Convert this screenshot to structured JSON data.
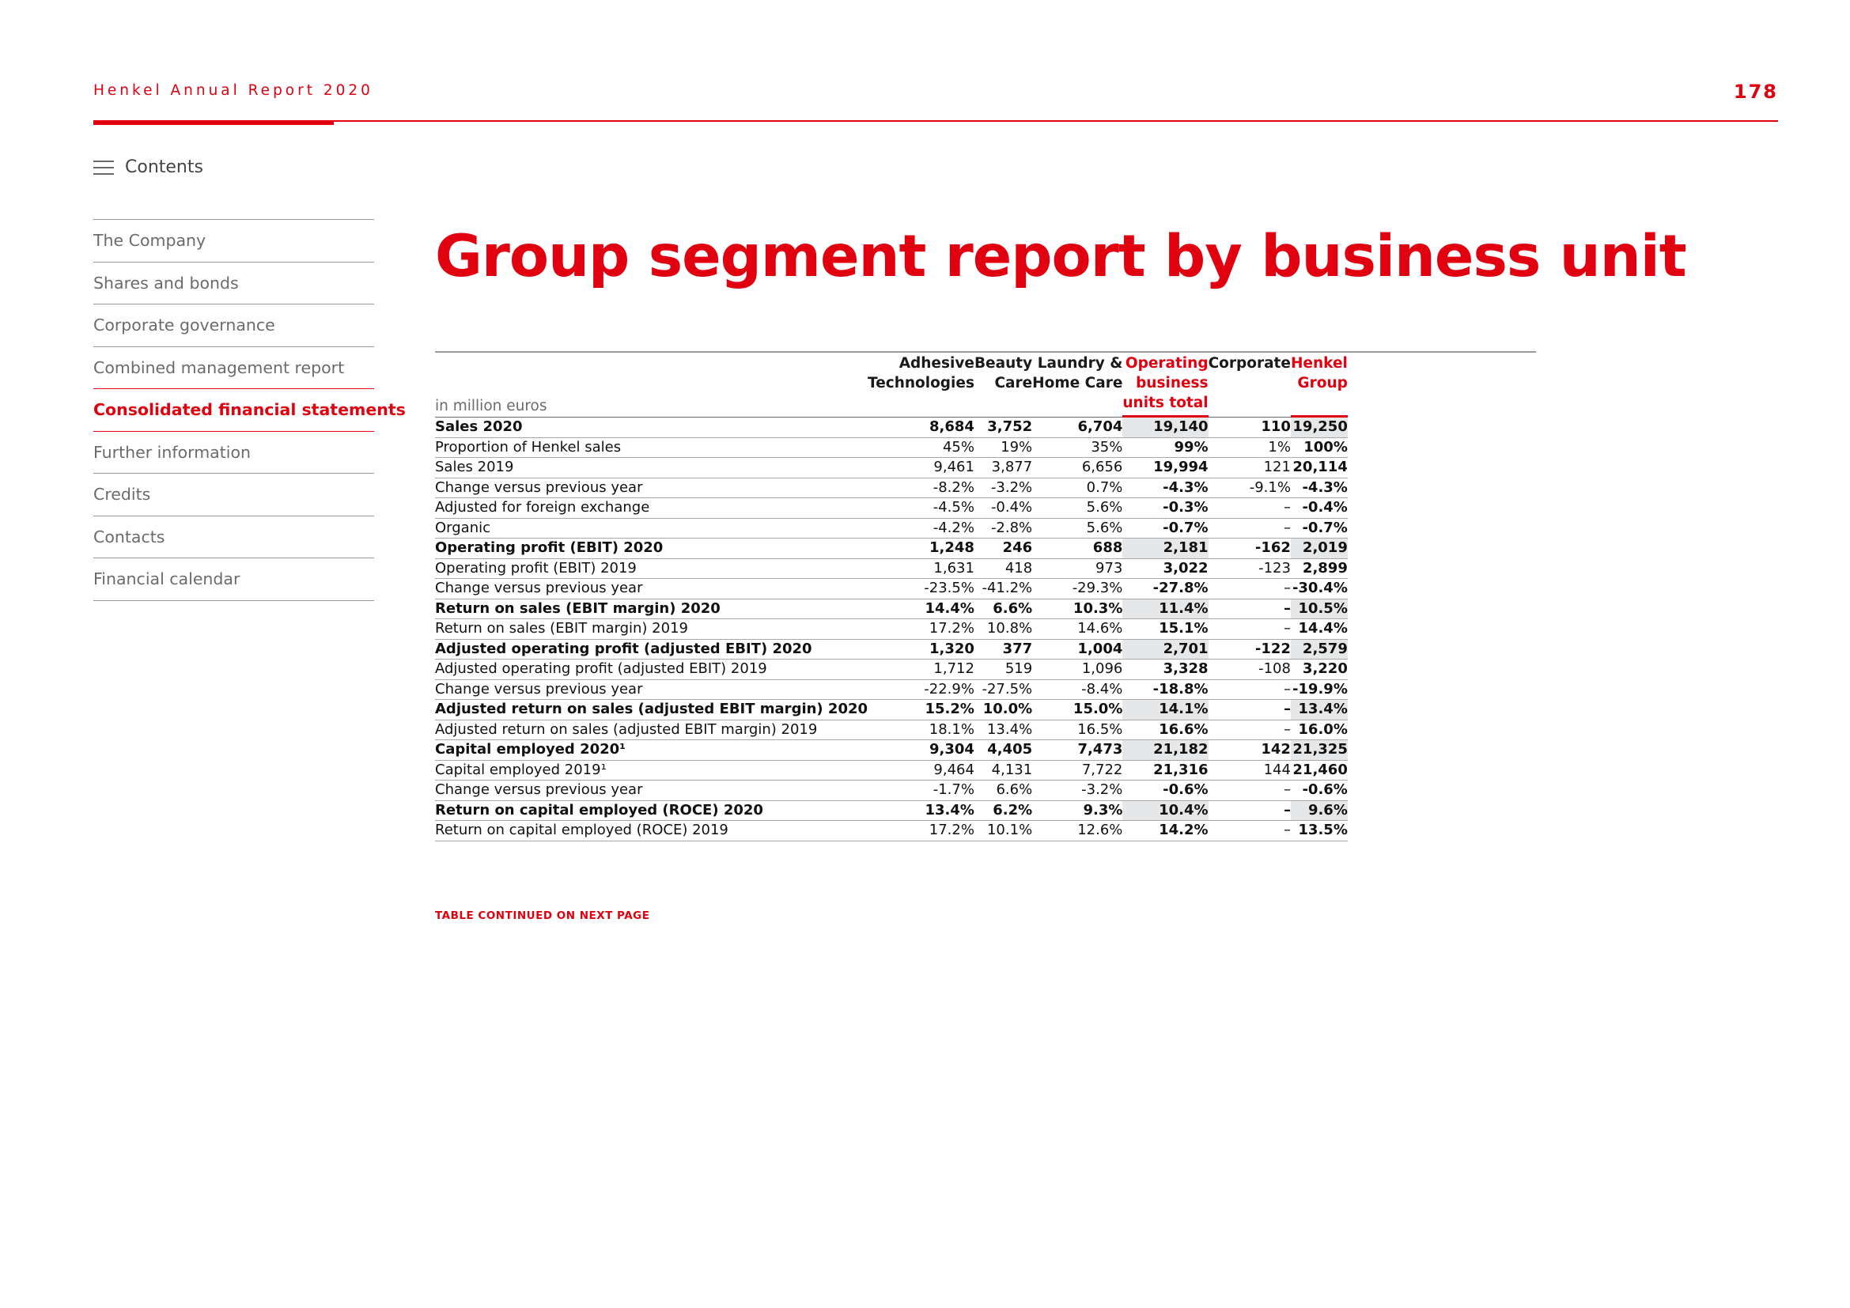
{
  "header": {
    "title": "Henkel Annual Report 2020",
    "page_number": "178"
  },
  "contents": {
    "label": "Contents",
    "icon": "menu-icon"
  },
  "nav": {
    "items": [
      {
        "label": "The Company",
        "active": false
      },
      {
        "label": "Shares and bonds",
        "active": false
      },
      {
        "label": "Corporate governance",
        "active": false
      },
      {
        "label": "Combined management report",
        "active": false
      },
      {
        "label": "Consolidated financial statements",
        "active": true
      },
      {
        "label": "Further information",
        "active": false
      },
      {
        "label": "Credits",
        "active": false
      },
      {
        "label": "Contacts",
        "active": false
      },
      {
        "label": "Financial calendar",
        "active": false
      }
    ]
  },
  "page_title": "Group segment report by business unit",
  "table": {
    "unit_label": "in million euros",
    "columns": [
      {
        "line1": "Adhesive",
        "line2": "Technologies",
        "line3": ""
      },
      {
        "line1": "Beauty",
        "line2": "Care",
        "line3": ""
      },
      {
        "line1": "Laundry &",
        "line2": "Home Care",
        "line3": ""
      },
      {
        "line1": "Operating",
        "line2": "business",
        "line3": "units total"
      },
      {
        "line1": "Corporate",
        "line2": "",
        "line3": ""
      },
      {
        "line1": "Henkel",
        "line2": "Group",
        "line3": ""
      }
    ],
    "rows": [
      {
        "label": "Sales 2020",
        "bold": true,
        "values": [
          "8,684",
          "3,752",
          "6,704",
          "19,140",
          "110",
          "19,250"
        ]
      },
      {
        "label": "Proportion of Henkel sales",
        "bold": false,
        "values": [
          "45%",
          "19%",
          "35%",
          "99%",
          "1%",
          "100%"
        ]
      },
      {
        "label": "Sales 2019",
        "bold": false,
        "values": [
          "9,461",
          "3,877",
          "6,656",
          "19,994",
          "121",
          "20,114"
        ]
      },
      {
        "label": "Change versus previous year",
        "bold": false,
        "values": [
          "-8.2%",
          "-3.2%",
          "0.7%",
          "-4.3%",
          "-9.1%",
          "-4.3%"
        ]
      },
      {
        "label": "Adjusted for foreign exchange",
        "bold": false,
        "values": [
          "-4.5%",
          "-0.4%",
          "5.6%",
          "-0.3%",
          "–",
          "-0.4%"
        ]
      },
      {
        "label": "Organic",
        "bold": false,
        "values": [
          "-4.2%",
          "-2.8%",
          "5.6%",
          "-0.7%",
          "–",
          "-0.7%"
        ]
      },
      {
        "label": "Operating profit (EBIT) 2020",
        "bold": true,
        "values": [
          "1,248",
          "246",
          "688",
          "2,181",
          "-162",
          "2,019"
        ]
      },
      {
        "label": "Operating profit (EBIT) 2019",
        "bold": false,
        "values": [
          "1,631",
          "418",
          "973",
          "3,022",
          "-123",
          "2,899"
        ]
      },
      {
        "label": "Change versus previous year",
        "bold": false,
        "values": [
          "-23.5%",
          "-41.2%",
          "-29.3%",
          "-27.8%",
          "–",
          "-30.4%"
        ]
      },
      {
        "label": "Return on sales (EBIT margin) 2020",
        "bold": true,
        "values": [
          "14.4%",
          "6.6%",
          "10.3%",
          "11.4%",
          "–",
          "10.5%"
        ]
      },
      {
        "label": "Return on sales (EBIT margin) 2019",
        "bold": false,
        "values": [
          "17.2%",
          "10.8%",
          "14.6%",
          "15.1%",
          "–",
          "14.4%"
        ]
      },
      {
        "label": "Adjusted operating profit (adjusted EBIT) 2020",
        "bold": true,
        "values": [
          "1,320",
          "377",
          "1,004",
          "2,701",
          "-122",
          "2,579"
        ]
      },
      {
        "label": "Adjusted operating profit (adjusted EBIT) 2019",
        "bold": false,
        "values": [
          "1,712",
          "519",
          "1,096",
          "3,328",
          "-108",
          "3,220"
        ]
      },
      {
        "label": "Change versus previous year",
        "bold": false,
        "values": [
          "-22.9%",
          "-27.5%",
          "-8.4%",
          "-18.8%",
          "–",
          "-19.9%"
        ]
      },
      {
        "label": "Adjusted return on sales (adjusted EBIT margin) 2020",
        "bold": true,
        "values": [
          "15.2%",
          "10.0%",
          "15.0%",
          "14.1%",
          "–",
          "13.4%"
        ]
      },
      {
        "label": "Adjusted return on sales (adjusted EBIT margin) 2019",
        "bold": false,
        "values": [
          "18.1%",
          "13.4%",
          "16.5%",
          "16.6%",
          "–",
          "16.0%"
        ]
      },
      {
        "label": "Capital employed 2020¹",
        "bold": true,
        "values": [
          "9,304",
          "4,405",
          "7,473",
          "21,182",
          "142",
          "21,325"
        ]
      },
      {
        "label": "Capital employed 2019¹",
        "bold": false,
        "values": [
          "9,464",
          "4,131",
          "7,722",
          "21,316",
          "144",
          "21,460"
        ]
      },
      {
        "label": "Change versus previous year",
        "bold": false,
        "values": [
          "-1.7%",
          "6.6%",
          "-3.2%",
          "-0.6%",
          "–",
          "-0.6%"
        ]
      },
      {
        "label": "Return on capital employed (ROCE) 2020",
        "bold": true,
        "values": [
          "13.4%",
          "6.2%",
          "9.3%",
          "10.4%",
          "–",
          "9.6%"
        ]
      },
      {
        "label": "Return on capital employed (ROCE) 2019",
        "bold": false,
        "values": [
          "17.2%",
          "10.1%",
          "12.6%",
          "14.2%",
          "–",
          "13.5%"
        ]
      }
    ]
  },
  "footnote": "TABLE CONTINUED ON NEXT PAGE",
  "colors": {
    "accent": "#e1000f",
    "nav_text": "#6b6b6b",
    "shade": "#e6e7e8"
  }
}
